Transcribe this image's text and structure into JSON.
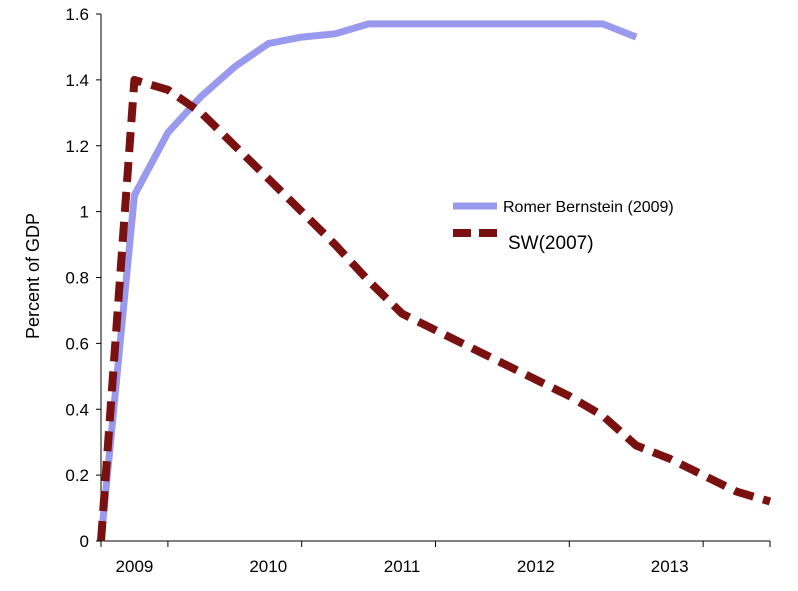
{
  "chart_data": {
    "type": "line",
    "title": "",
    "xlabel": "",
    "ylabel": "Percent of GDP",
    "xlim": [
      2008.75,
      2013.75
    ],
    "ylim": [
      0,
      1.6
    ],
    "xticks": [
      2009,
      2010,
      2011,
      2012,
      2013
    ],
    "xtick_labels": [
      "2009",
      "2010",
      "2011",
      "2012",
      "2013"
    ],
    "yticks": [
      0,
      0.2,
      0.4,
      0.6,
      0.8,
      1.0,
      1.2,
      1.4,
      1.6
    ],
    "ytick_labels": [
      "0",
      "0.2",
      "0.4",
      "0.6",
      "0.8",
      "1",
      "1.2",
      "1.4",
      "1.6"
    ],
    "grid": false,
    "legend_position": "center-right",
    "series": [
      {
        "name": "Romer Bernstein (2009)",
        "color": "#9999ee",
        "style": "solid",
        "x": [
          2008.75,
          2009.0,
          2009.25,
          2009.5,
          2009.75,
          2010.0,
          2010.25,
          2010.5,
          2010.75,
          2011.0,
          2011.25,
          2011.5,
          2011.75,
          2012.0,
          2012.25,
          2012.5,
          2012.75
        ],
        "y": [
          0.0,
          1.05,
          1.24,
          1.35,
          1.44,
          1.51,
          1.53,
          1.54,
          1.57,
          1.57,
          1.57,
          1.57,
          1.57,
          1.57,
          1.57,
          1.57,
          1.53
        ]
      },
      {
        "name": "SW(2007)",
        "color": "#7b1010",
        "style": "dashed",
        "x": [
          2008.75,
          2009.0,
          2009.25,
          2009.5,
          2009.75,
          2010.0,
          2010.25,
          2010.5,
          2010.75,
          2011.0,
          2011.25,
          2011.5,
          2011.75,
          2012.0,
          2012.25,
          2012.5,
          2012.75,
          2013.0,
          2013.25,
          2013.5,
          2013.75
        ],
        "y": [
          0.0,
          1.4,
          1.37,
          1.3,
          1.2,
          1.1,
          1.0,
          0.9,
          0.79,
          0.69,
          0.64,
          0.59,
          0.54,
          0.49,
          0.44,
          0.38,
          0.29,
          0.25,
          0.2,
          0.15,
          0.12
        ]
      }
    ]
  }
}
